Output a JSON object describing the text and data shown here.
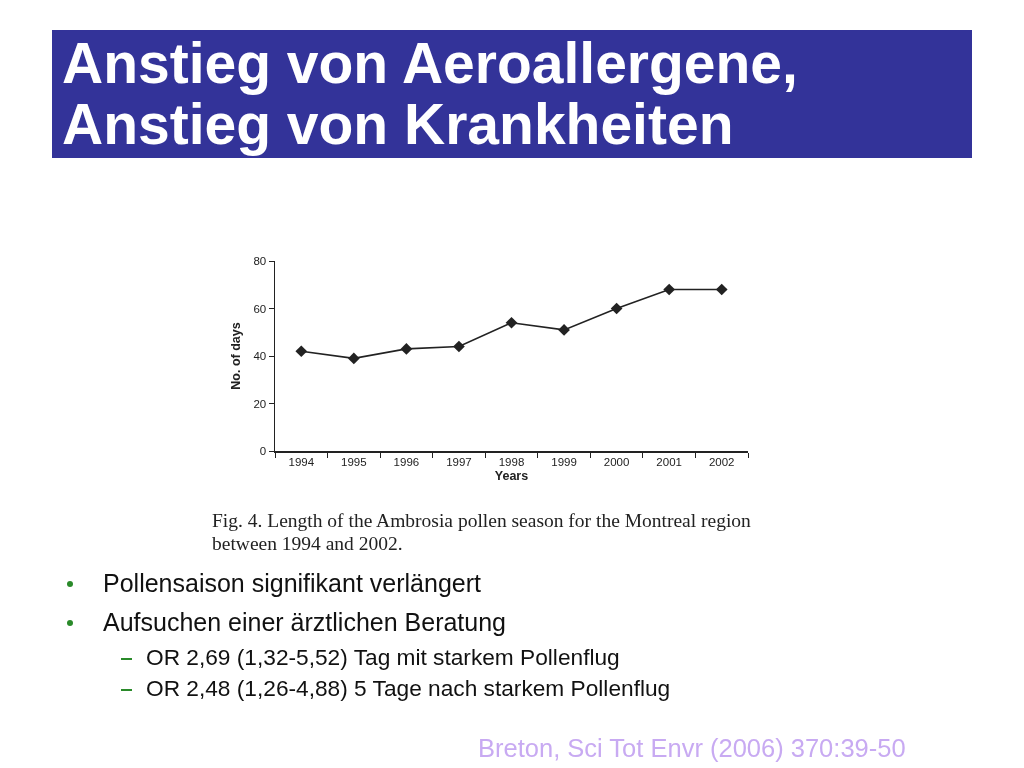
{
  "chart_data": {
    "type": "line",
    "title": "Anstieg von Aeroallergene, Anstieg von Krankheiten",
    "xlabel": "Years",
    "ylabel": "No. of days",
    "categories": [
      "1994",
      "1995",
      "1996",
      "1997",
      "1998",
      "1999",
      "2000",
      "2001",
      "2002"
    ],
    "series": [
      {
        "color": "#222222",
        "values": [
          42,
          39,
          43,
          44,
          54,
          51,
          60,
          68,
          68
        ]
      }
    ],
    "ylim": [
      0,
      80
    ],
    "yticks": [
      0,
      20,
      40,
      60,
      80
    ],
    "grid": false,
    "marker": "diamond",
    "line_style": "solid",
    "annotations": [
      "Fig. 4. Length of the Ambrosia pollen season for the Montreal region between 1994 and 2002.",
      "Pollensaison signifikant verlängert",
      "Aufsuchen einer ärztlichen Beratung",
      "OR 2,69 (1,32-5,52) Tag mit starkem Pollenflug",
      "OR 2,48 (1,26-4,88) 5 Tage nach starkem Pollenflug",
      "Breton, Sci Tot Envr (2006) 370:39-50"
    ]
  }
}
